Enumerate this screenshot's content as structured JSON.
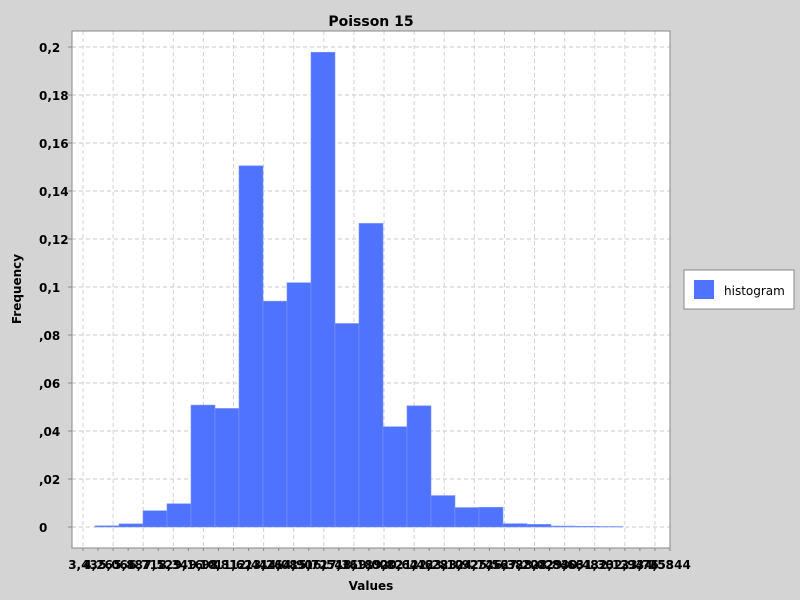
{
  "chart_data": {
    "type": "bar",
    "title": "Poisson 15",
    "xlabel": "Values",
    "ylabel": "Frequency",
    "ylim": [
      0,
      0.2
    ],
    "y_ticks": [
      {
        "value": 0,
        "label": "0"
      },
      {
        "value": 0.02,
        "label": ",02"
      },
      {
        "value": 0.04,
        "label": ",04"
      },
      {
        "value": 0.06,
        "label": ",06"
      },
      {
        "value": 0.08,
        "label": ",08"
      },
      {
        "value": 0.1,
        "label": "0,1"
      },
      {
        "value": 0.12,
        "label": "0,12"
      },
      {
        "value": 0.14,
        "label": "0,14"
      },
      {
        "value": 0.16,
        "label": "0,16"
      },
      {
        "value": 0.18,
        "label": "0,18"
      },
      {
        "value": 0.2,
        "label": "0,2"
      }
    ],
    "x_tick_labels": [
      "3,43",
      "4,26",
      "5,06",
      "5,88",
      "6,71",
      "7,52",
      "8,34",
      "9,16",
      "9,98",
      "10,81",
      "11,62",
      "12,44",
      "13,26",
      "14,08",
      "14,90",
      "15,72",
      "16,54",
      "17,36",
      "18,18",
      "19,00",
      "19,82",
      "20,64",
      "21,46",
      "22,28",
      "23,10",
      "23,92",
      "24,74",
      "25,56",
      "26,38",
      "27,20",
      "28,02",
      "28,84",
      "29,66",
      "30,48",
      "31,30",
      "32,12",
      "32,94",
      "33,76",
      "34,58",
      "35344"
    ],
    "grid": true,
    "legend_position": "right",
    "series": [
      {
        "name": "histogram",
        "color": "#4f72ff",
        "values": [
          0.0005,
          0.0013,
          0.0068,
          0.0097,
          0.0508,
          0.0494,
          0.1505,
          0.0941,
          0.1018,
          0.1978,
          0.0848,
          0.1265,
          0.0418,
          0.0505,
          0.0131,
          0.0081,
          0.0082,
          0.0014,
          0.0011,
          0.0004,
          0.0003,
          0.0002
        ]
      }
    ]
  }
}
